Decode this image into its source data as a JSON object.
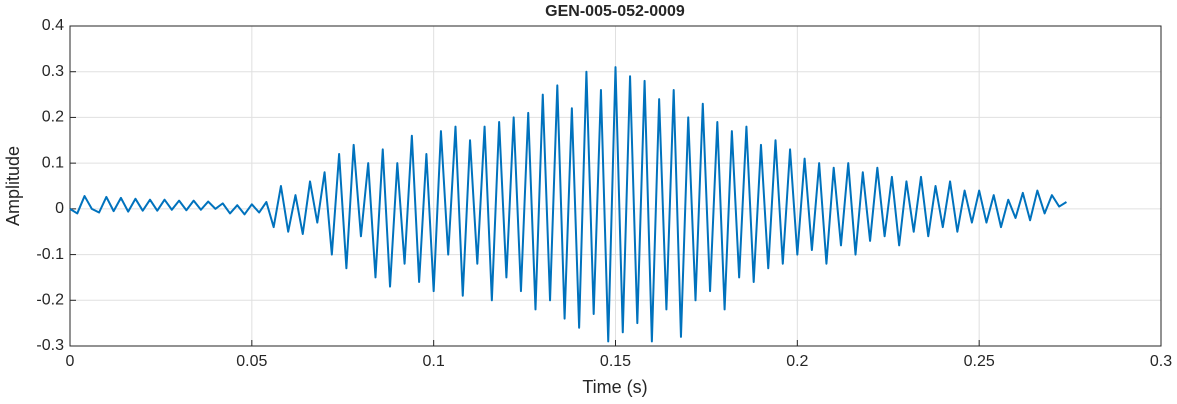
{
  "chart_data": {
    "type": "line",
    "title": "GEN-005-052-0009",
    "xlabel": "Time (s)",
    "ylabel": "Amplitude",
    "color": "#0072bd",
    "grid": true,
    "xlim": [
      0,
      0.3
    ],
    "xticks": [
      0,
      0.05,
      0.1,
      0.15,
      0.2,
      0.25,
      0.3
    ],
    "ylim": [
      -0.3,
      0.4
    ],
    "yticks": [
      -0.3,
      -0.2,
      -0.1,
      0,
      0.1,
      0.2,
      0.3,
      0.4
    ],
    "x": [
      0,
      0.002,
      0.004,
      0.006,
      0.008,
      0.01,
      0.012,
      0.014,
      0.016,
      0.018,
      0.02,
      0.022,
      0.024,
      0.026,
      0.028,
      0.03,
      0.032,
      0.034,
      0.036,
      0.038,
      0.04,
      0.042,
      0.044,
      0.046,
      0.048,
      0.05,
      0.052,
      0.054,
      0.056,
      0.058,
      0.06,
      0.062,
      0.064,
      0.066,
      0.068,
      0.07,
      0.072,
      0.074,
      0.076,
      0.078,
      0.08,
      0.082,
      0.084,
      0.086,
      0.088,
      0.09,
      0.092,
      0.094,
      0.096,
      0.098,
      0.1,
      0.102,
      0.104,
      0.106,
      0.108,
      0.11,
      0.112,
      0.114,
      0.116,
      0.118,
      0.12,
      0.122,
      0.124,
      0.126,
      0.128,
      0.13,
      0.132,
      0.134,
      0.136,
      0.138,
      0.14,
      0.142,
      0.144,
      0.146,
      0.148,
      0.15,
      0.152,
      0.154,
      0.156,
      0.158,
      0.16,
      0.162,
      0.164,
      0.166,
      0.168,
      0.17,
      0.172,
      0.174,
      0.176,
      0.178,
      0.18,
      0.182,
      0.184,
      0.186,
      0.188,
      0.19,
      0.192,
      0.194,
      0.196,
      0.198,
      0.2,
      0.202,
      0.204,
      0.206,
      0.208,
      0.21,
      0.212,
      0.214,
      0.216,
      0.218,
      0.22,
      0.222,
      0.224,
      0.226,
      0.228,
      0.23,
      0.232,
      0.234,
      0.236,
      0.238,
      0.24,
      0.242,
      0.244,
      0.246,
      0.248,
      0.25,
      0.252,
      0.254,
      0.256,
      0.258,
      0.26,
      0.262,
      0.264,
      0.266,
      0.268,
      0.27,
      0.272,
      0.274
    ],
    "values": [
      0,
      -0.01,
      0.028,
      0.0,
      -0.008,
      0.026,
      -0.005,
      0.024,
      -0.006,
      0.022,
      -0.004,
      0.02,
      -0.004,
      0.02,
      -0.002,
      0.018,
      -0.003,
      0.018,
      -0.002,
      0.016,
      0.0,
      0.012,
      -0.01,
      0.008,
      -0.012,
      0.01,
      -0.008,
      0.015,
      -0.04,
      0.05,
      -0.05,
      0.03,
      -0.055,
      0.06,
      -0.03,
      0.08,
      -0.1,
      0.12,
      -0.13,
      0.14,
      -0.06,
      0.1,
      -0.15,
      0.13,
      -0.17,
      0.1,
      -0.12,
      0.16,
      -0.16,
      0.12,
      -0.18,
      0.17,
      -0.1,
      0.18,
      -0.19,
      0.15,
      -0.12,
      0.18,
      -0.2,
      0.19,
      -0.15,
      0.2,
      -0.18,
      0.21,
      -0.22,
      0.25,
      -0.2,
      0.27,
      -0.24,
      0.22,
      -0.26,
      0.3,
      -0.23,
      0.26,
      -0.29,
      0.31,
      -0.27,
      0.29,
      -0.25,
      0.28,
      -0.29,
      0.24,
      -0.22,
      0.26,
      -0.28,
      0.2,
      -0.2,
      0.23,
      -0.18,
      0.19,
      -0.22,
      0.17,
      -0.15,
      0.18,
      -0.16,
      0.14,
      -0.13,
      0.15,
      -0.12,
      0.13,
      -0.1,
      0.11,
      -0.09,
      0.1,
      -0.12,
      0.09,
      -0.08,
      0.1,
      -0.1,
      0.08,
      -0.07,
      0.09,
      -0.06,
      0.07,
      -0.08,
      0.06,
      -0.05,
      0.07,
      -0.06,
      0.05,
      -0.04,
      0.06,
      -0.05,
      0.04,
      -0.03,
      0.04,
      -0.03,
      0.03,
      -0.04,
      0.02,
      -0.02,
      0.035,
      -0.025,
      0.04,
      -0.01,
      0.03,
      0.005,
      0.015
    ]
  }
}
